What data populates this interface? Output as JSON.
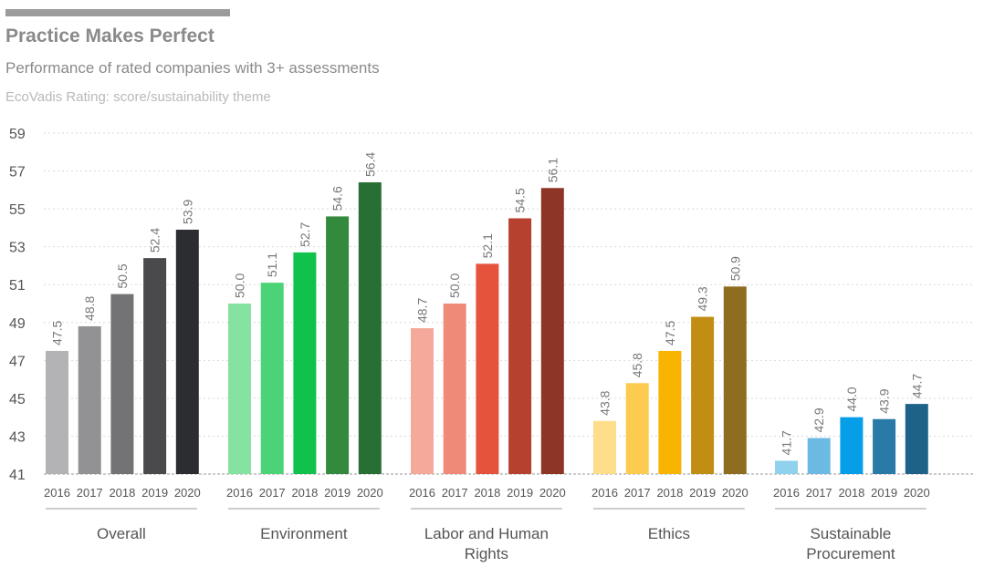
{
  "header": {
    "title": "Practice Makes Perfect",
    "subtitle": "Performance of rated companies with 3+ assessments",
    "note": "EcoVadis Rating: score/sustainability theme"
  },
  "chart_data": {
    "type": "bar",
    "title": "Practice Makes Perfect",
    "subtitle": "Performance of rated companies with 3+ assessments",
    "ylabel": "",
    "xlabel": "",
    "ylim": [
      41,
      59
    ],
    "yticks": [
      41,
      43,
      45,
      47,
      49,
      51,
      53,
      55,
      57,
      59
    ],
    "grid": true,
    "years": [
      "2016",
      "2017",
      "2018",
      "2019",
      "2020"
    ],
    "groups": [
      {
        "name": "Overall",
        "label_lines": [
          "Overall"
        ],
        "values": [
          47.5,
          48.8,
          50.5,
          52.4,
          53.9
        ],
        "colors": [
          "#b3b3b5",
          "#929294",
          "#737375",
          "#4a4a4c",
          "#2b2d30"
        ]
      },
      {
        "name": "Environment",
        "label_lines": [
          "Environment"
        ],
        "values": [
          50.0,
          51.1,
          52.7,
          54.6,
          56.4
        ],
        "colors": [
          "#86e2a0",
          "#4cd377",
          "#10c24b",
          "#33893c",
          "#276f33"
        ]
      },
      {
        "name": "Labor and Human Rights",
        "label_lines": [
          "Labor and Human",
          "Rights"
        ],
        "values": [
          48.7,
          50.0,
          52.1,
          54.5,
          56.1
        ],
        "colors": [
          "#f4a99a",
          "#f08a78",
          "#e5533c",
          "#b7412f",
          "#8e3626"
        ]
      },
      {
        "name": "Ethics",
        "label_lines": [
          "Ethics"
        ],
        "values": [
          43.8,
          45.8,
          47.5,
          49.3,
          50.9
        ],
        "colors": [
          "#fedd8b",
          "#fdcb4f",
          "#f9b301",
          "#c18d13",
          "#8e6c20"
        ]
      },
      {
        "name": "Sustainable Procurement",
        "label_lines": [
          "Sustainable",
          "Procurement"
        ],
        "values": [
          41.7,
          42.9,
          44.0,
          43.9,
          44.7
        ],
        "colors": [
          "#90d2ee",
          "#6cb9e3",
          "#069ee8",
          "#2a7aa8",
          "#1e628a"
        ]
      }
    ]
  }
}
